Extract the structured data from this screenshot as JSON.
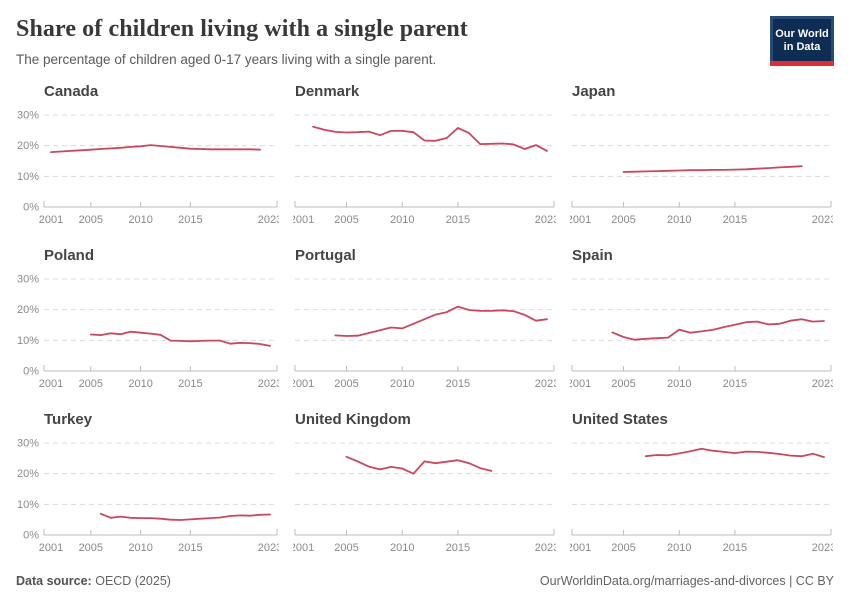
{
  "header": {
    "title": "Share of children living with a single parent",
    "subtitle": "The percentage of children aged 0-17 years living with a single parent.",
    "logo_line1": "Our World",
    "logo_line2": "in Data"
  },
  "footer": {
    "source_label": "Data source:",
    "source_value": "OECD (2025)",
    "attribution": "OurWorldinData.org/marriages-and-divorces | CC BY"
  },
  "chart_data": {
    "type": "line",
    "title": "Share of children living with a single parent",
    "subtitle": "The percentage of children aged 0-17 years living with a single parent.",
    "layout": "3x3-small-multiples",
    "grid": true,
    "legend_position": "none",
    "line_color": "#c9485f",
    "gridline_color": "#dcdcdc",
    "axis_color": "#bdbdbd",
    "tick_label_color": "#8a8a8a",
    "ylim": [
      0,
      30
    ],
    "yticks": [
      0,
      10,
      20,
      30
    ],
    "y_tick_suffix": "%",
    "xlim": [
      2001,
      2023
    ],
    "xticks": [
      2001,
      2005,
      2010,
      2015,
      2023
    ],
    "panels": [
      {
        "name": "Canada",
        "start_year": 2001,
        "values": [
          17.9,
          18.1,
          18.3,
          18.5,
          18.7,
          18.9,
          19.1,
          19.3,
          19.6,
          19.8,
          20.2,
          19.9,
          19.6,
          19.3,
          19.0,
          18.9,
          18.8,
          18.8,
          18.8,
          18.8,
          18.8,
          18.7
        ]
      },
      {
        "name": "Denmark",
        "start_year": 2002,
        "values": [
          26.2,
          25.2,
          24.5,
          24.3,
          24.4,
          24.6,
          23.4,
          24.8,
          24.8,
          24.4,
          21.7,
          21.6,
          22.5,
          25.8,
          24.1,
          20.5,
          20.6,
          20.7,
          20.4,
          18.9,
          20.2,
          18.3
        ]
      },
      {
        "name": "Japan",
        "start_year": 2005,
        "values": [
          11.4,
          11.5,
          11.6,
          11.7,
          11.8,
          11.9,
          12.0,
          12.0,
          12.1,
          12.1,
          12.2,
          12.3,
          12.5,
          12.7,
          12.9,
          13.1,
          13.3
        ]
      },
      {
        "name": "Poland",
        "start_year": 2005,
        "values": [
          11.9,
          11.7,
          12.3,
          12.0,
          12.8,
          12.5,
          12.2,
          11.8,
          9.9,
          9.8,
          9.7,
          9.8,
          9.9,
          9.9,
          8.9,
          9.2,
          9.1,
          8.8,
          8.2
        ]
      },
      {
        "name": "Portugal",
        "start_year": 2004,
        "values": [
          11.6,
          11.4,
          11.5,
          12.4,
          13.3,
          14.2,
          13.9,
          15.4,
          16.9,
          18.4,
          19.2,
          21.0,
          19.9,
          19.6,
          19.6,
          19.8,
          19.5,
          18.3,
          16.4,
          16.9
        ]
      },
      {
        "name": "Spain",
        "start_year": 2004,
        "values": [
          12.6,
          11.1,
          10.2,
          10.5,
          10.7,
          10.9,
          13.5,
          12.5,
          12.9,
          13.4,
          14.3,
          15.1,
          15.9,
          16.1,
          15.2,
          15.4,
          16.4,
          16.9,
          16.1,
          16.3
        ]
      },
      {
        "name": "Turkey",
        "start_year": 2006,
        "values": [
          6.9,
          5.6,
          6.0,
          5.6,
          5.5,
          5.5,
          5.3,
          5.0,
          4.9,
          5.1,
          5.3,
          5.5,
          5.7,
          6.2,
          6.4,
          6.3,
          6.6,
          6.7
        ]
      },
      {
        "name": "United Kingdom",
        "start_year": 2005,
        "values": [
          25.5,
          24.0,
          22.3,
          21.4,
          22.2,
          21.7,
          20.0,
          24.0,
          23.4,
          23.9,
          24.4,
          23.4,
          21.8,
          20.9
        ]
      },
      {
        "name": "United States",
        "start_year": 2007,
        "values": [
          25.7,
          26.1,
          26.0,
          26.6,
          27.3,
          28.1,
          27.5,
          27.1,
          26.7,
          27.2,
          27.1,
          26.8,
          26.4,
          25.9,
          25.7,
          26.5,
          25.4
        ]
      }
    ]
  }
}
